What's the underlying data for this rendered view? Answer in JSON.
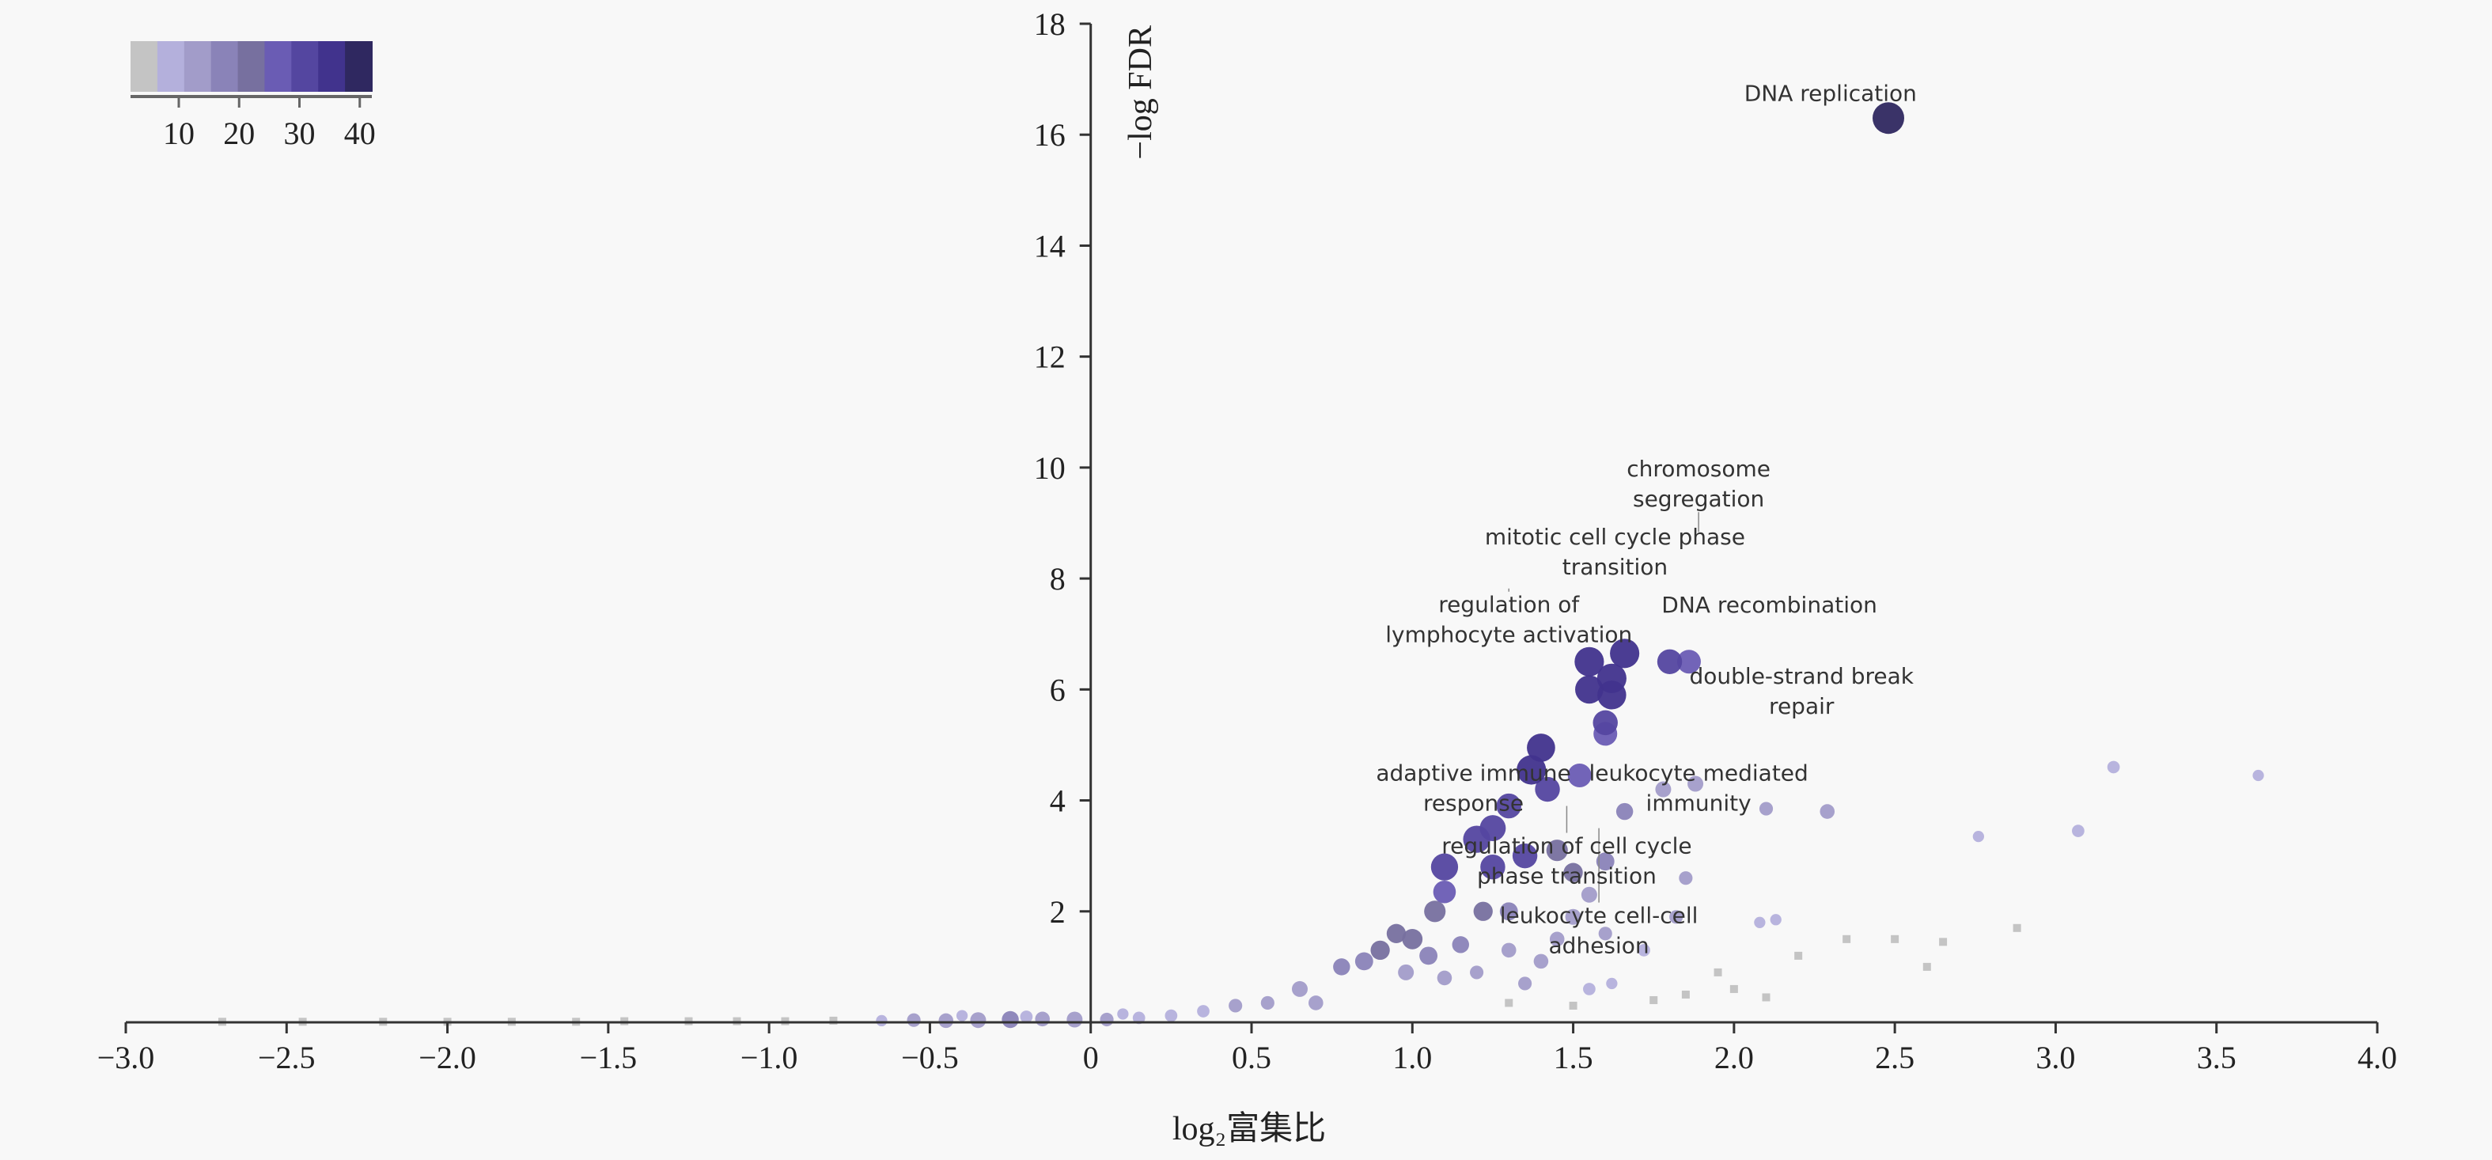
{
  "chart_data": {
    "type": "scatter",
    "title": "",
    "xlabel": "log₂富集比",
    "ylabel": "−log FDR",
    "xlim": [
      -3.0,
      4.0
    ],
    "ylim": [
      0,
      18
    ],
    "x_ticks": [
      "−3.0",
      "−2.5",
      "−2.0",
      "−1.5",
      "−1.0",
      "−0.5",
      "0",
      "0.5",
      "1.0",
      "1.5",
      "2.0",
      "2.5",
      "3.0",
      "3.5",
      "4.0"
    ],
    "x_tick_values": [
      -3,
      -2.5,
      -2,
      -1.5,
      -1,
      -0.5,
      0,
      0.5,
      1,
      1.5,
      2,
      2.5,
      3,
      3.5,
      4
    ],
    "y_ticks": [
      "2",
      "4",
      "6",
      "8",
      "10",
      "12",
      "14",
      "16",
      "18"
    ],
    "y_tick_values": [
      2,
      4,
      6,
      8,
      10,
      12,
      14,
      16,
      18
    ],
    "grid": false,
    "colorbar": {
      "placement": "top-left",
      "range": [
        2,
        42
      ],
      "ticks": [
        "10",
        "20",
        "30",
        "40"
      ],
      "tick_values": [
        10,
        20,
        30,
        40
      ],
      "colors": [
        "#c4c4c4",
        "#b4b0dc",
        "#a29cc9",
        "#8a83b8",
        "#77709f",
        "#6a5cb4",
        "#5446a0",
        "#41338d",
        "#2f2860"
      ]
    },
    "points_columns": [
      "x",
      "y",
      "count"
    ],
    "points": [
      [
        2.48,
        16.3,
        42
      ],
      [
        1.55,
        6.5,
        38
      ],
      [
        1.66,
        6.65,
        38
      ],
      [
        1.62,
        6.2,
        38
      ],
      [
        1.55,
        6.0,
        36
      ],
      [
        1.62,
        5.9,
        37
      ],
      [
        1.6,
        5.4,
        30
      ],
      [
        1.6,
        5.2,
        28
      ],
      [
        1.8,
        6.5,
        30
      ],
      [
        1.86,
        6.5,
        28
      ],
      [
        1.4,
        4.95,
        36
      ],
      [
        1.37,
        4.55,
        38
      ],
      [
        1.42,
        4.2,
        30
      ],
      [
        1.52,
        4.45,
        28
      ],
      [
        1.3,
        3.9,
        30
      ],
      [
        1.25,
        3.5,
        32
      ],
      [
        1.2,
        3.3,
        34
      ],
      [
        1.1,
        2.8,
        34
      ],
      [
        1.25,
        2.8,
        30
      ],
      [
        1.35,
        3.0,
        30
      ],
      [
        1.45,
        3.1,
        24
      ],
      [
        1.5,
        2.7,
        20
      ],
      [
        1.6,
        2.9,
        18
      ],
      [
        1.66,
        3.8,
        16
      ],
      [
        1.78,
        4.2,
        14
      ],
      [
        1.88,
        4.3,
        14
      ],
      [
        2.1,
        3.85,
        10
      ],
      [
        2.29,
        3.8,
        12
      ],
      [
        3.18,
        4.6,
        8
      ],
      [
        3.63,
        4.45,
        6
      ],
      [
        2.76,
        3.35,
        6
      ],
      [
        3.07,
        3.45,
        8
      ],
      [
        1.1,
        2.35,
        26
      ],
      [
        1.07,
        2.0,
        24
      ],
      [
        1.22,
        2.0,
        20
      ],
      [
        1.3,
        2.0,
        18
      ],
      [
        1.55,
        2.3,
        14
      ],
      [
        1.5,
        1.9,
        14
      ],
      [
        1.82,
        1.9,
        10
      ],
      [
        1.85,
        2.6,
        10
      ],
      [
        2.08,
        1.8,
        6
      ],
      [
        2.13,
        1.85,
        6
      ],
      [
        1.72,
        1.3,
        8
      ],
      [
        1.6,
        1.6,
        10
      ],
      [
        1.45,
        1.5,
        12
      ],
      [
        1.4,
        1.1,
        12
      ],
      [
        0.95,
        1.6,
        20
      ],
      [
        0.85,
        1.1,
        18
      ],
      [
        0.78,
        1.0,
        16
      ],
      [
        0.9,
        1.3,
        20
      ],
      [
        1.0,
        1.5,
        22
      ],
      [
        1.05,
        1.2,
        18
      ],
      [
        1.15,
        1.4,
        16
      ],
      [
        1.3,
        1.3,
        12
      ],
      [
        0.98,
        0.9,
        14
      ],
      [
        1.1,
        0.8,
        12
      ],
      [
        1.2,
        0.9,
        10
      ],
      [
        1.35,
        0.7,
        10
      ],
      [
        1.55,
        0.6,
        8
      ],
      [
        1.62,
        0.7,
        6
      ],
      [
        0.65,
        0.6,
        14
      ],
      [
        0.7,
        0.35,
        12
      ],
      [
        0.55,
        0.35,
        10
      ],
      [
        0.45,
        0.3,
        10
      ],
      [
        0.35,
        0.2,
        8
      ],
      [
        0.25,
        0.12,
        8
      ],
      [
        0.15,
        0.08,
        8
      ],
      [
        0.05,
        0.05,
        10
      ],
      [
        2.2,
        1.2,
        2
      ],
      [
        2.35,
        1.5,
        3
      ],
      [
        2.5,
        1.5,
        2
      ],
      [
        2.6,
        1.0,
        2
      ],
      [
        2.65,
        1.45,
        2
      ],
      [
        2.88,
        1.7,
        2
      ],
      [
        2.0,
        0.6,
        2
      ],
      [
        1.95,
        0.9,
        3
      ],
      [
        1.85,
        0.5,
        2
      ],
      [
        1.75,
        0.4,
        2
      ],
      [
        1.3,
        0.35,
        2
      ],
      [
        1.5,
        0.3,
        2
      ],
      [
        2.1,
        0.45,
        2
      ],
      [
        -0.05,
        0.05,
        14
      ],
      [
        -0.15,
        0.06,
        12
      ],
      [
        -0.25,
        0.05,
        16
      ],
      [
        -0.35,
        0.04,
        14
      ],
      [
        -0.45,
        0.03,
        12
      ],
      [
        -0.55,
        0.04,
        10
      ],
      [
        -0.65,
        0.03,
        6
      ],
      [
        -0.8,
        0.03,
        4
      ],
      [
        -0.95,
        0.02,
        3
      ],
      [
        -1.1,
        0.02,
        3
      ],
      [
        -1.25,
        0.02,
        3
      ],
      [
        -1.45,
        0.02,
        3
      ],
      [
        -1.6,
        0.01,
        2
      ],
      [
        -1.8,
        0.01,
        2
      ],
      [
        -2.0,
        0.01,
        2
      ],
      [
        -2.2,
        0.01,
        2
      ],
      [
        -2.45,
        0.01,
        2
      ],
      [
        -2.7,
        0.01,
        2
      ],
      [
        -0.2,
        0.1,
        8
      ],
      [
        -0.4,
        0.12,
        6
      ],
      [
        0.1,
        0.15,
        6
      ]
    ],
    "annotations": [
      {
        "lines": [
          "DNA replication"
        ],
        "x": 2.3,
        "y": 16.75
      },
      {
        "lines": [
          "mitotic cell cycle phase",
          "transition"
        ],
        "x": 1.63,
        "y": 8.76
      },
      {
        "lines": [
          "chromosome",
          "segregation"
        ],
        "x": 1.89,
        "y": 8.84
      },
      {
        "lines": [
          "regulation of",
          "lymphocyte activation"
        ],
        "x": 1.3,
        "y": 7.82
      },
      {
        "lines": [
          "DNA recombination"
        ],
        "x": 2.11,
        "y": 7.53
      },
      {
        "lines": [
          "double-strand break",
          "repair"
        ],
        "x": 2.21,
        "y": 6.25
      },
      {
        "lines": [
          "adaptive immune",
          "response"
        ],
        "x": 1.19,
        "y": 4.5
      },
      {
        "lines": [
          "leukocyte mediated",
          "immunity"
        ],
        "x": 1.89,
        "y": 4.5
      },
      {
        "lines": [
          "regulation of cell cycle",
          "phase transition"
        ],
        "x": 1.48,
        "y": 3.9
      },
      {
        "lines": [
          "leukocyte cell-cell",
          "adhesion"
        ],
        "x": 1.58,
        "y": 3.5
      }
    ]
  }
}
